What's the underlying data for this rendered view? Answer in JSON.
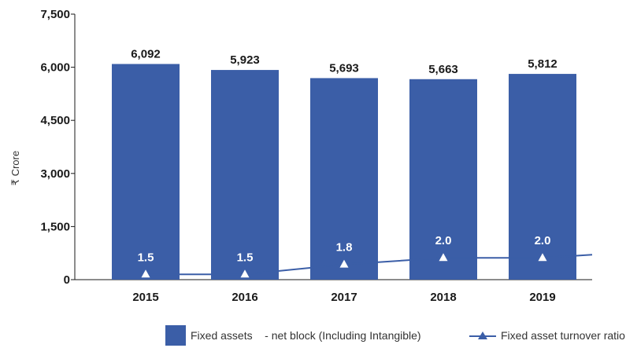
{
  "chart_data": {
    "type": "bar",
    "title": "",
    "xlabel": "",
    "ylabel": "₹ Crore",
    "ylim": [
      0,
      7500
    ],
    "yticks": [
      "0",
      "1,500",
      "3,000",
      "4,500",
      "6,000",
      "7,500"
    ],
    "ytick_values": [
      0,
      1500,
      3000,
      4500,
      6000,
      7500
    ],
    "categories": [
      "2015",
      "2016",
      "2017",
      "2018",
      "2019"
    ],
    "grid": false,
    "legend_position": "bottom",
    "series": [
      {
        "name": "Fixed assets    - net block (Including Intangible)",
        "type": "bar",
        "color": "#3b5ea7",
        "values": [
          6092,
          5923,
          5693,
          5663,
          5812
        ],
        "labels": [
          "6,092",
          "5,923",
          "5,693",
          "5,663",
          "5,812"
        ]
      },
      {
        "name": "Fixed asset turnover ratio",
        "type": "line",
        "color": "#3b5ea7",
        "marker_color": "#ffffff",
        "values": [
          1.5,
          1.5,
          1.8,
          2.0,
          2.0
        ],
        "labels": [
          "1.5",
          "1.5",
          "1.8",
          "2.0",
          "2.0"
        ]
      }
    ]
  }
}
